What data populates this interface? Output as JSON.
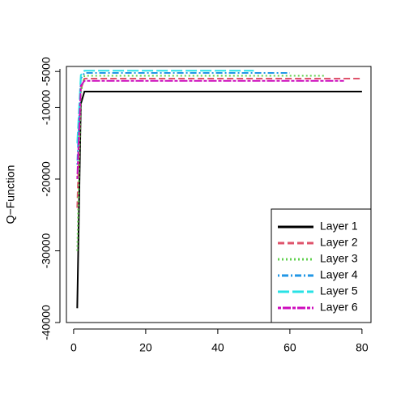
{
  "chart_data": {
    "type": "line",
    "ylabel": "Q−Function",
    "xlim": [
      -2,
      82.5
    ],
    "xticks": [
      0,
      20,
      40,
      60,
      80
    ],
    "ylim": [
      -40000,
      -4300
    ],
    "yticks": [
      -40000,
      -30000,
      -20000,
      -10000,
      -5000
    ],
    "legend": "bottomright",
    "series": [
      {
        "name": "Layer 1",
        "color": "#000000",
        "linestyle": "solid",
        "x": [
          1,
          2,
          3,
          80
        ],
        "values": [
          -38000,
          -9500,
          -7800,
          -7800
        ]
      },
      {
        "name": "Layer 2",
        "color": "#DF536B",
        "linestyle": "dashed",
        "x": [
          1,
          2,
          3,
          80
        ],
        "values": [
          -24000,
          -7500,
          -6000,
          -6000
        ]
      },
      {
        "name": "Layer 3",
        "color": "#61D04F",
        "linestyle": "dotted",
        "x": [
          1,
          2,
          3,
          70
        ],
        "values": [
          -30000,
          -8000,
          -5600,
          -5600
        ]
      },
      {
        "name": "Layer 4",
        "color": "#2297E6",
        "linestyle": "dotdash",
        "x": [
          1,
          2,
          3,
          60
        ],
        "values": [
          -18000,
          -6000,
          -5200,
          -5200
        ]
      },
      {
        "name": "Layer 5",
        "color": "#28E2E5",
        "linestyle": "longdash",
        "x": [
          1,
          2,
          3,
          50
        ],
        "values": [
          -15000,
          -5500,
          -4900,
          -4900
        ]
      },
      {
        "name": "Layer 6",
        "color": "#CD0BBC",
        "linestyle": "twodash",
        "x": [
          1,
          2,
          3,
          75
        ],
        "values": [
          -20000,
          -7000,
          -6300,
          -6300
        ]
      }
    ]
  }
}
